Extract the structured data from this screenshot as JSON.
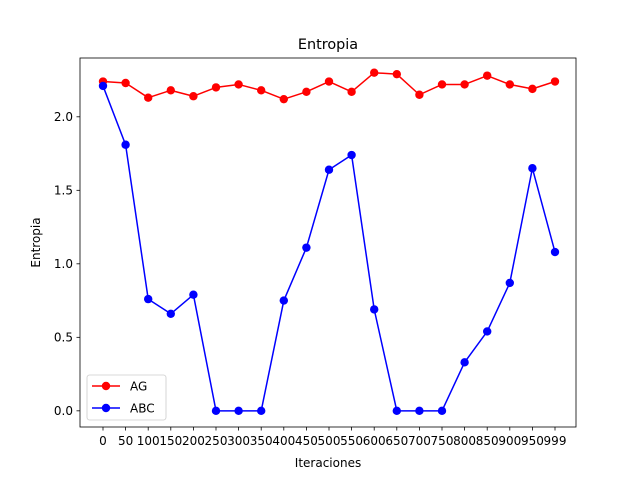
{
  "chart_data": {
    "type": "line",
    "title": "Entropia",
    "xlabel": "Iteraciones",
    "ylabel": "Entropia",
    "categories": [
      "0",
      "50",
      "100",
      "150",
      "200",
      "250",
      "300",
      "350",
      "400",
      "450",
      "500",
      "550",
      "600",
      "650",
      "700",
      "750",
      "800",
      "850",
      "900",
      "950",
      "999"
    ],
    "ylim": [
      -0.11,
      2.4
    ],
    "yticks": [
      0.0,
      0.5,
      1.0,
      1.5,
      2.0
    ],
    "ytick_labels": [
      "0.0",
      "0.5",
      "1.0",
      "1.5",
      "2.0"
    ],
    "grid": false,
    "legend_position": "lower-left",
    "series": [
      {
        "name": "AG",
        "color": "#ff0000",
        "marker": "circle",
        "values": [
          2.24,
          2.23,
          2.13,
          2.18,
          2.14,
          2.2,
          2.22,
          2.18,
          2.12,
          2.17,
          2.24,
          2.17,
          2.3,
          2.29,
          2.15,
          2.22,
          2.22,
          2.28,
          2.22,
          2.19,
          2.24
        ]
      },
      {
        "name": "ABC",
        "color": "#0000ff",
        "marker": "circle",
        "values": [
          2.21,
          1.81,
          0.76,
          0.66,
          0.79,
          0.0,
          0.0,
          0.0,
          0.75,
          1.11,
          1.64,
          1.74,
          0.69,
          0.0,
          0.0,
          0.0,
          0.33,
          0.54,
          0.87,
          1.65,
          1.08
        ]
      }
    ]
  }
}
